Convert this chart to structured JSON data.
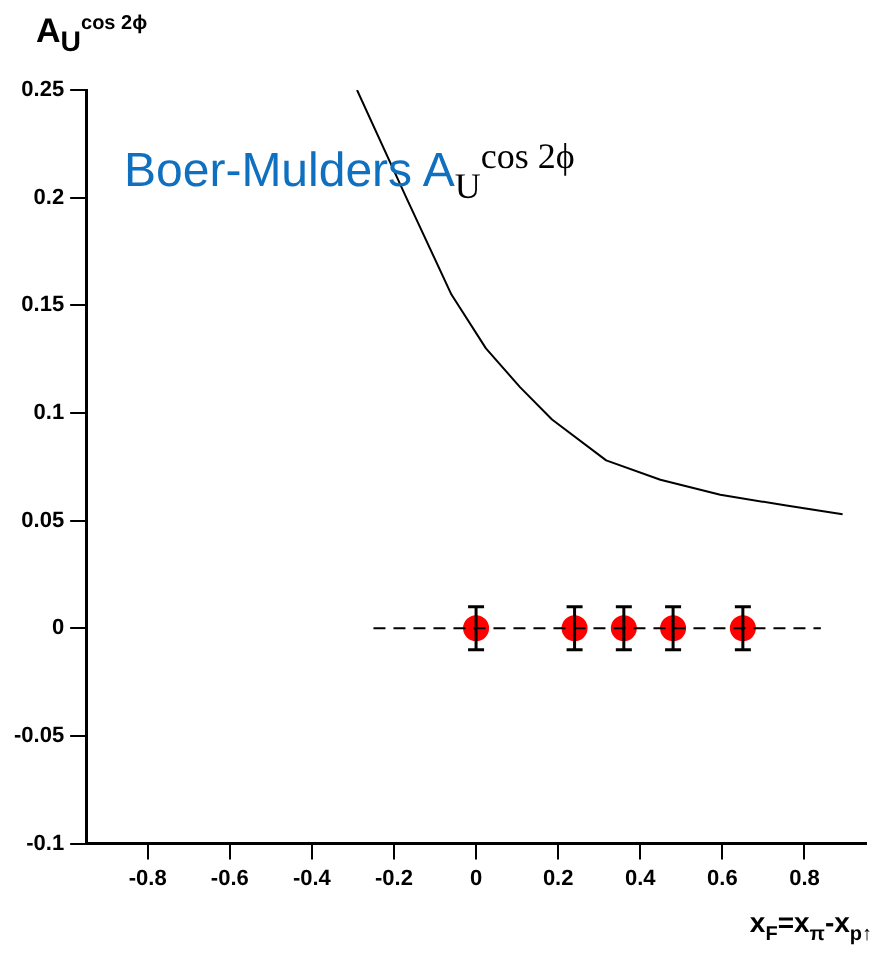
{
  "chart_data": {
    "type": "scatter",
    "ylabel": "A$_{U}$$^{cos 2ϕ}$",
    "xlabel": "x$_{F}$=x$_{π}$-x$_{p↑}$",
    "annotations": [
      "Boer-Mulders A$_{U}$$^{cos 2ϕ}$"
    ],
    "xlim": [
      -0.95,
      0.95
    ],
    "ylim": [
      -0.1,
      0.25
    ],
    "xticks": [
      -0.8,
      -0.6,
      -0.4,
      -0.2,
      0,
      0.2,
      0.4,
      0.6,
      0.8
    ],
    "yticks": [
      -0.1,
      -0.05,
      0,
      0.05,
      0.1,
      0.15,
      0.2,
      0.25
    ],
    "grid": false,
    "legend": false,
    "series": [
      {
        "type": "line",
        "color": "#000000",
        "marker": "none",
        "line_style": "solid",
        "x": [
          -0.29,
          -0.17,
          -0.06,
          0.024,
          0.107,
          0.185,
          0.317,
          0.449,
          0.595,
          0.756,
          0.893
        ],
        "values": [
          0.25,
          0.2,
          0.155,
          0.13,
          0.112,
          0.097,
          0.078,
          0.069,
          0.062,
          0.057,
          0.053
        ]
      },
      {
        "type": "line",
        "color": "#000000",
        "marker": "none",
        "line_style": "dashed",
        "x": [
          -0.25,
          0.84
        ],
        "values": [
          0,
          0
        ]
      },
      {
        "type": "scatter",
        "color": "#ff0000",
        "marker": "circle",
        "x": [
          0,
          0.24,
          0.36,
          0.48,
          0.65
        ],
        "values": [
          0,
          0,
          0,
          0,
          0
        ],
        "errors": [
          0.01,
          0.01,
          0.01,
          0.01,
          0.01
        ]
      }
    ]
  }
}
